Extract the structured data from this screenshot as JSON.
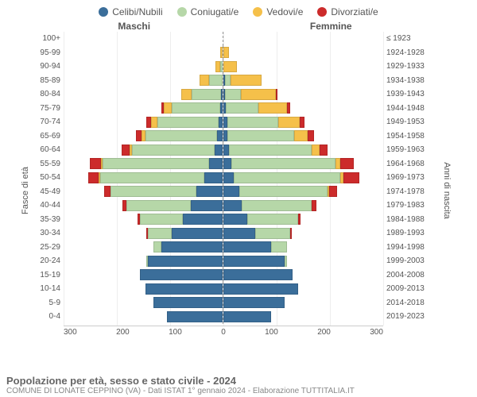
{
  "type": "population-pyramid",
  "legend": [
    {
      "label": "Celibi/Nubili",
      "color": "#3b6e9a"
    },
    {
      "label": "Coniugati/e",
      "color": "#b6d7a8"
    },
    {
      "label": "Vedovi/e",
      "color": "#f5c04a"
    },
    {
      "label": "Divorziati/e",
      "color": "#cc2b2b"
    }
  ],
  "header_male": "Maschi",
  "header_female": "Femmine",
  "ylabel_left": "Fasce di età",
  "ylabel_right": "Anni di nascita",
  "xmax": 300,
  "xticks": [
    300,
    200,
    100,
    0,
    100,
    200,
    300
  ],
  "colors": {
    "single": "#3b6e9a",
    "married": "#b6d7a8",
    "widowed": "#f5c04a",
    "divorced": "#cc2b2b",
    "grid": "#eeeeee",
    "axis": "#cccccc",
    "centerline": "#999999",
    "text": "#555555",
    "bg": "#ffffff"
  },
  "rows": [
    {
      "age": "100+",
      "year": "≤ 1923",
      "m": {
        "s": 0,
        "c": 0,
        "v": 0,
        "d": 0
      },
      "f": {
        "s": 0,
        "c": 0,
        "v": 0,
        "d": 0
      }
    },
    {
      "age": "95-99",
      "year": "1924-1928",
      "m": {
        "s": 0,
        "c": 0,
        "v": 4,
        "d": 0
      },
      "f": {
        "s": 0,
        "c": 0,
        "v": 10,
        "d": 0
      }
    },
    {
      "age": "90-94",
      "year": "1929-1933",
      "m": {
        "s": 0,
        "c": 5,
        "v": 8,
        "d": 0
      },
      "f": {
        "s": 0,
        "c": 0,
        "v": 26,
        "d": 0
      }
    },
    {
      "age": "85-89",
      "year": "1934-1938",
      "m": {
        "s": 0,
        "c": 25,
        "v": 18,
        "d": 0
      },
      "f": {
        "s": 3,
        "c": 10,
        "v": 58,
        "d": 0
      }
    },
    {
      "age": "80-84",
      "year": "1939-1943",
      "m": {
        "s": 3,
        "c": 55,
        "v": 20,
        "d": 0
      },
      "f": {
        "s": 3,
        "c": 30,
        "v": 65,
        "d": 3
      }
    },
    {
      "age": "75-79",
      "year": "1944-1948",
      "m": {
        "s": 5,
        "c": 90,
        "v": 15,
        "d": 5
      },
      "f": {
        "s": 5,
        "c": 60,
        "v": 55,
        "d": 5
      }
    },
    {
      "age": "70-74",
      "year": "1949-1953",
      "m": {
        "s": 8,
        "c": 115,
        "v": 12,
        "d": 8
      },
      "f": {
        "s": 8,
        "c": 95,
        "v": 40,
        "d": 10
      }
    },
    {
      "age": "65-69",
      "year": "1954-1958",
      "m": {
        "s": 10,
        "c": 135,
        "v": 8,
        "d": 10
      },
      "f": {
        "s": 8,
        "c": 125,
        "v": 25,
        "d": 12
      }
    },
    {
      "age": "60-64",
      "year": "1959-1963",
      "m": {
        "s": 15,
        "c": 155,
        "v": 5,
        "d": 15
      },
      "f": {
        "s": 10,
        "c": 155,
        "v": 15,
        "d": 15
      }
    },
    {
      "age": "55-59",
      "year": "1964-1968",
      "m": {
        "s": 25,
        "c": 200,
        "v": 3,
        "d": 22
      },
      "f": {
        "s": 15,
        "c": 195,
        "v": 10,
        "d": 25
      }
    },
    {
      "age": "50-54",
      "year": "1969-1973",
      "m": {
        "s": 35,
        "c": 195,
        "v": 2,
        "d": 20
      },
      "f": {
        "s": 20,
        "c": 200,
        "v": 5,
        "d": 30
      }
    },
    {
      "age": "45-49",
      "year": "1974-1978",
      "m": {
        "s": 50,
        "c": 160,
        "v": 0,
        "d": 12
      },
      "f": {
        "s": 30,
        "c": 165,
        "v": 3,
        "d": 15
      }
    },
    {
      "age": "40-44",
      "year": "1979-1983",
      "m": {
        "s": 60,
        "c": 120,
        "v": 0,
        "d": 8
      },
      "f": {
        "s": 35,
        "c": 130,
        "v": 0,
        "d": 10
      }
    },
    {
      "age": "35-39",
      "year": "1984-1988",
      "m": {
        "s": 75,
        "c": 80,
        "v": 0,
        "d": 5
      },
      "f": {
        "s": 45,
        "c": 95,
        "v": 0,
        "d": 5
      }
    },
    {
      "age": "30-34",
      "year": "1989-1993",
      "m": {
        "s": 95,
        "c": 45,
        "v": 0,
        "d": 2
      },
      "f": {
        "s": 60,
        "c": 65,
        "v": 0,
        "d": 3
      }
    },
    {
      "age": "25-29",
      "year": "1994-1998",
      "m": {
        "s": 115,
        "c": 15,
        "v": 0,
        "d": 0
      },
      "f": {
        "s": 90,
        "c": 30,
        "v": 0,
        "d": 0
      }
    },
    {
      "age": "20-24",
      "year": "1999-2003",
      "m": {
        "s": 140,
        "c": 2,
        "v": 0,
        "d": 0
      },
      "f": {
        "s": 115,
        "c": 5,
        "v": 0,
        "d": 0
      }
    },
    {
      "age": "15-19",
      "year": "2004-2008",
      "m": {
        "s": 155,
        "c": 0,
        "v": 0,
        "d": 0
      },
      "f": {
        "s": 130,
        "c": 0,
        "v": 0,
        "d": 0
      }
    },
    {
      "age": "10-14",
      "year": "2009-2013",
      "m": {
        "s": 145,
        "c": 0,
        "v": 0,
        "d": 0
      },
      "f": {
        "s": 140,
        "c": 0,
        "v": 0,
        "d": 0
      }
    },
    {
      "age": "5-9",
      "year": "2014-2018",
      "m": {
        "s": 130,
        "c": 0,
        "v": 0,
        "d": 0
      },
      "f": {
        "s": 115,
        "c": 0,
        "v": 0,
        "d": 0
      }
    },
    {
      "age": "0-4",
      "year": "2019-2023",
      "m": {
        "s": 105,
        "c": 0,
        "v": 0,
        "d": 0
      },
      "f": {
        "s": 90,
        "c": 0,
        "v": 0,
        "d": 0
      }
    }
  ],
  "title": "Popolazione per età, sesso e stato civile - 2024",
  "subtitle": "COMUNE DI LONATE CEPPINO (VA) - Dati ISTAT 1° gennaio 2024 - Elaborazione TUTTITALIA.IT"
}
